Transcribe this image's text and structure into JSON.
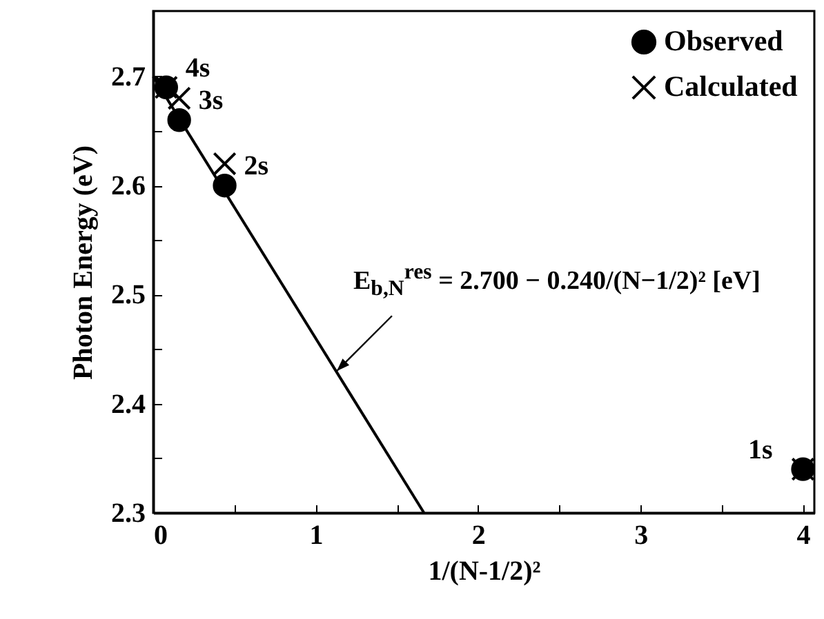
{
  "chart_data": {
    "type": "scatter",
    "xlabel": "1/(N-1/2)²",
    "ylabel": "Photon Energy (eV)",
    "xlim": [
      0,
      4.07
    ],
    "ylim": [
      2.3,
      2.76
    ],
    "xticks": [
      0,
      {
        "value": 0.5,
        "label": null
      },
      1,
      {
        "value": 1.5,
        "label": null
      },
      2,
      {
        "value": 2.5,
        "label": null
      },
      3,
      {
        "value": 3.5,
        "label": null
      },
      4
    ],
    "yticks": [
      2.3,
      {
        "value": 2.35,
        "label": null
      },
      2.4,
      {
        "value": 2.45,
        "label": null
      },
      2.5,
      {
        "value": 2.55,
        "label": null
      },
      2.6,
      {
        "value": 2.65,
        "label": null
      },
      2.7
    ],
    "legend": "top right",
    "grid": false,
    "series": [
      {
        "name": "Observed",
        "type": "scatter",
        "marker": "circle",
        "color": "#000000",
        "x": [
          0.08,
          0.16,
          0.44,
          4
        ],
        "values": [
          2.69,
          2.66,
          2.6,
          2.34
        ]
      },
      {
        "name": "Calculated",
        "type": "scatter",
        "marker": "cross",
        "color": "#000000",
        "x": [
          0.08,
          0.16,
          0.44,
          4
        ],
        "values": [
          2.69,
          2.68,
          2.62,
          2.34
        ]
      },
      {
        "type": "line",
        "color": "#000000",
        "x": [
          0,
          1.667
        ],
        "values": [
          2.7,
          2.3
        ]
      }
    ],
    "annotations": [
      {
        "text": "4s",
        "x": 0.08,
        "y": 2.69
      },
      {
        "text": "3s",
        "x": 0.16,
        "y": 2.66
      },
      {
        "text": "2s",
        "x": 0.44,
        "y": 2.6
      },
      {
        "text": "1s",
        "x": 4,
        "y": 2.34
      },
      {
        "text": "E$_{b,N}$$^{res}$ = 2.700 − 0.240/(N−1/2)² [eV]",
        "x": 1.13,
        "y": 2.43
      }
    ]
  }
}
